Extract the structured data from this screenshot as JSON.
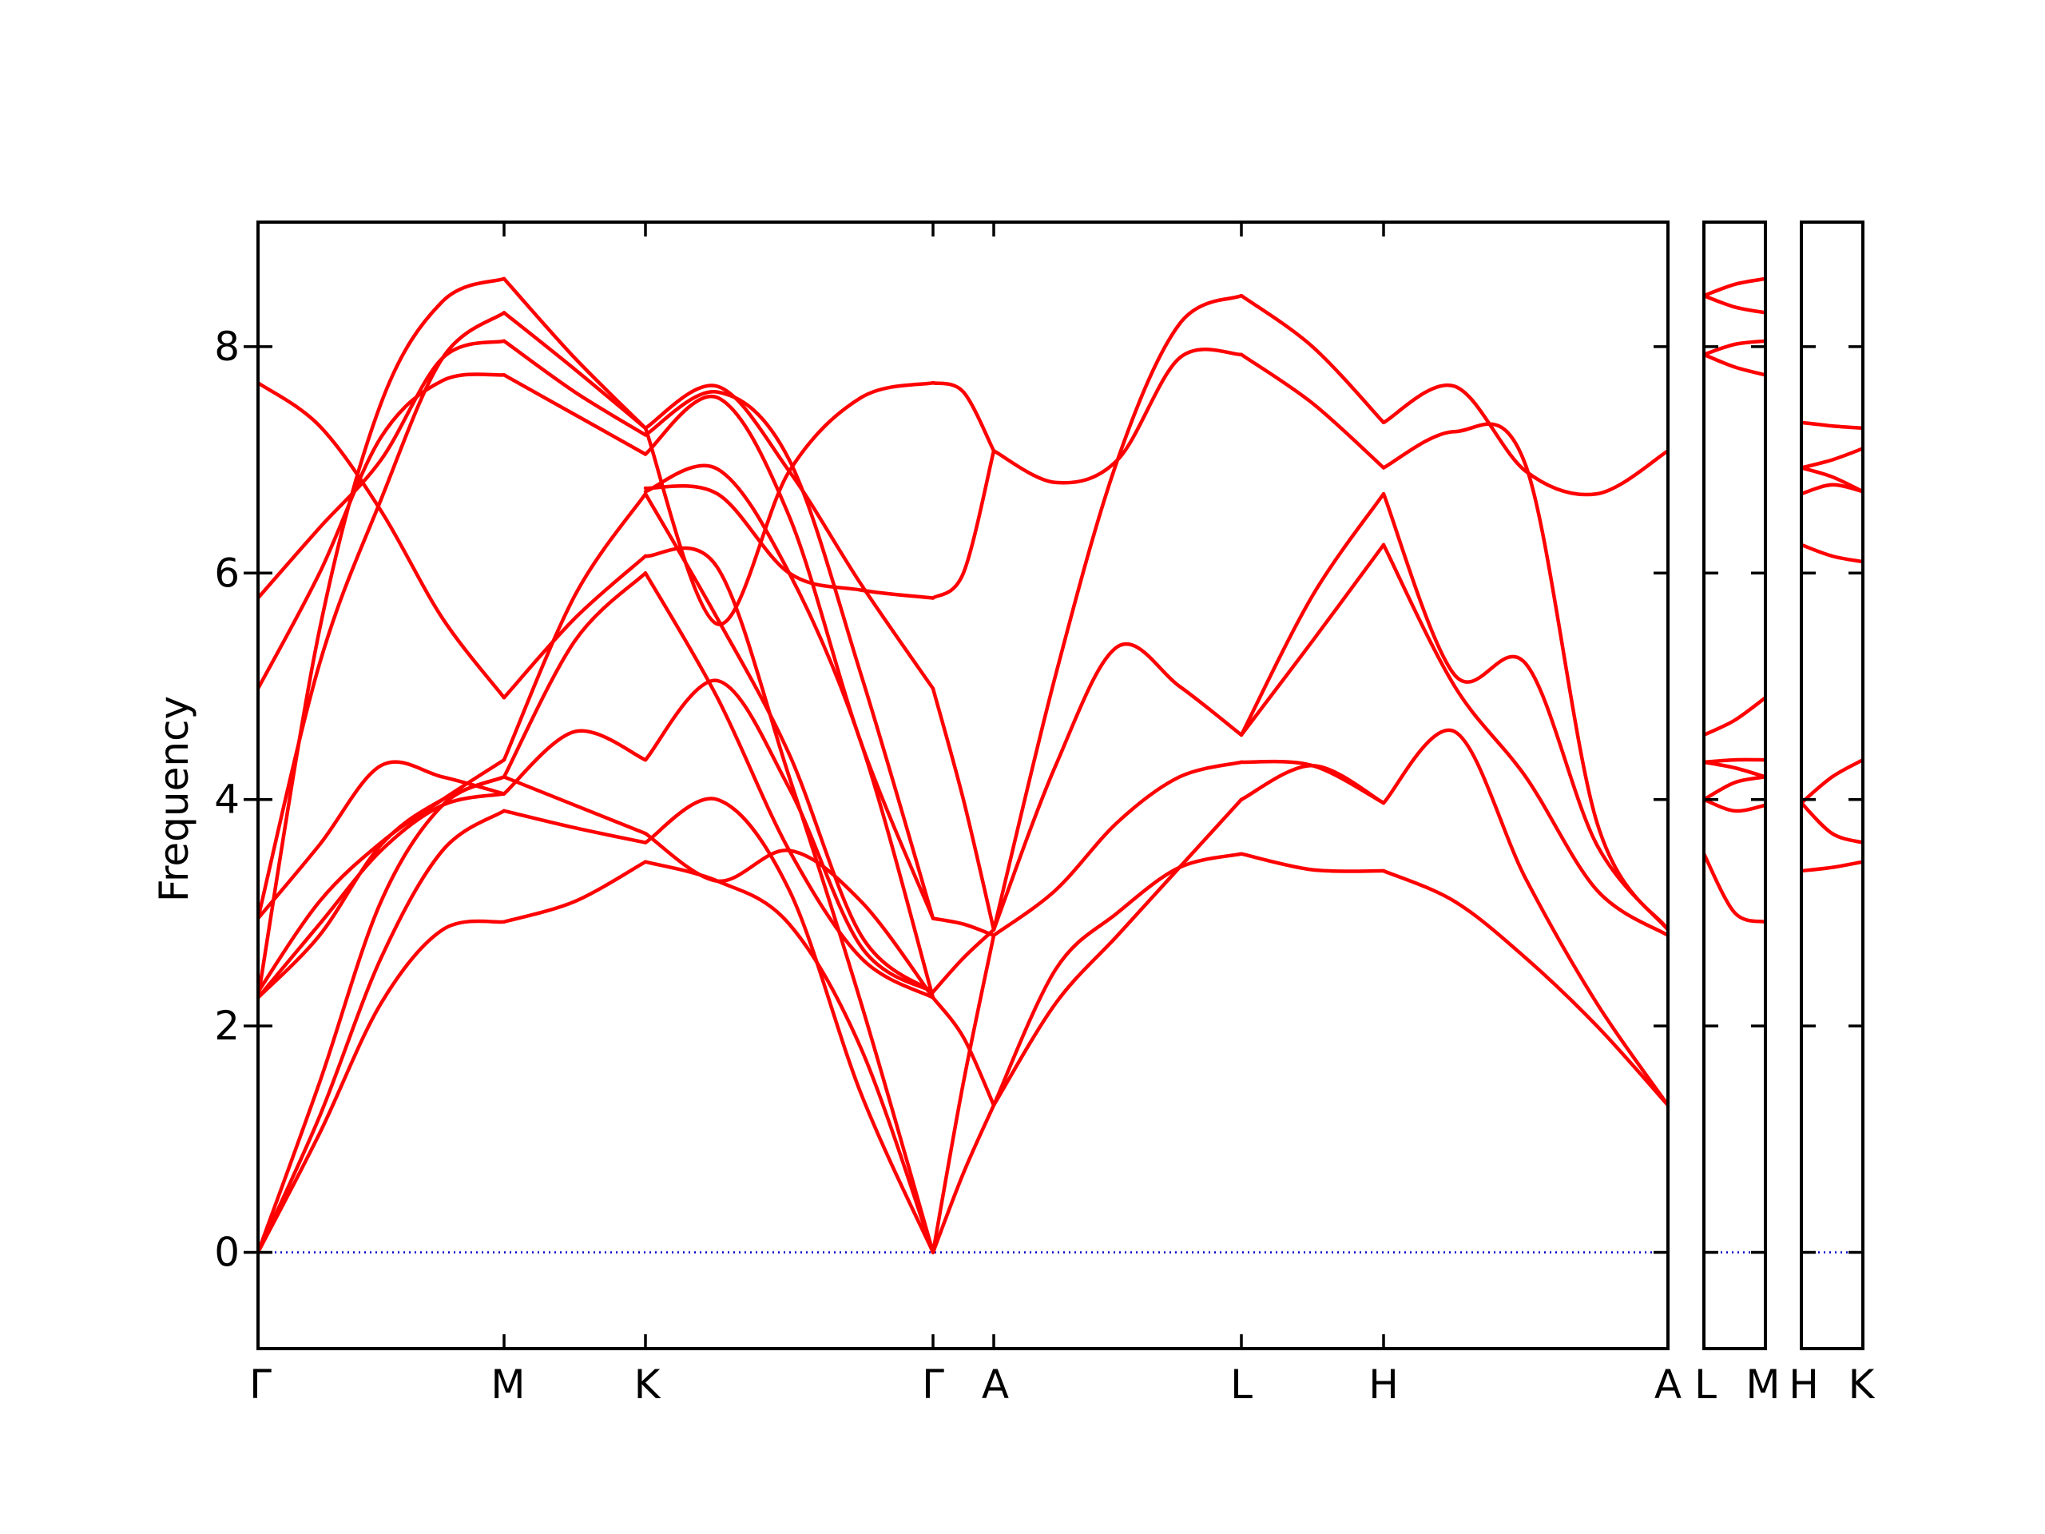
{
  "chart_data": {
    "type": "line",
    "ylabel": "Frequency",
    "ylim": [
      -0.85,
      9.1
    ],
    "yticks": [
      0,
      2,
      4,
      6,
      8
    ],
    "colors": {
      "band": "#ff0000",
      "zero_line": "#0000cc",
      "frame": "#000000"
    },
    "zero_line": {
      "y": 0,
      "style": "dotted"
    },
    "panels": [
      {
        "name": "main",
        "labels": [
          "Γ",
          "M",
          "K",
          "Γ",
          "A",
          "L",
          "H",
          "A"
        ],
        "bands": [
          {
            "segment": "Γ-M",
            "x": [
              0,
              0.25,
              0.5,
              0.75,
              1
            ],
            "lines": [
              [
                0.0,
                1.05,
                2.2,
                2.85,
                2.92
              ],
              [
                0.0,
                1.2,
                2.6,
                3.55,
                3.9
              ],
              [
                0.0,
                1.5,
                3.1,
                3.95,
                4.2
              ],
              [
                2.25,
                2.9,
                3.55,
                3.95,
                4.05
              ],
              [
                2.25,
                2.8,
                3.6,
                4.0,
                4.2
              ],
              [
                2.3,
                3.1,
                3.62,
                4.0,
                4.35
              ],
              [
                2.95,
                3.6,
                4.3,
                4.2,
                4.05
              ],
              [
                4.98,
                6.0,
                7.2,
                7.7,
                7.75
              ],
              [
                5.78,
                6.4,
                7.0,
                7.9,
                8.05
              ],
              [
                2.95,
                5.2,
                6.65,
                7.9,
                8.3
              ],
              [
                7.68,
                7.3,
                6.55,
                5.6,
                4.9
              ],
              [
                2.25,
                5.5,
                7.5,
                8.4,
                8.6
              ]
            ]
          },
          {
            "segment": "M-K",
            "x": [
              0,
              0.5,
              1
            ],
            "lines": [
              [
                2.92,
                3.1,
                3.45
              ],
              [
                3.9,
                3.75,
                3.62
              ],
              [
                4.2,
                3.95,
                3.7
              ],
              [
                4.05,
                4.6,
                4.35
              ],
              [
                4.2,
                5.4,
                6.0
              ],
              [
                4.35,
                5.8,
                6.7
              ],
              [
                7.75,
                7.4,
                7.05
              ],
              [
                8.05,
                7.6,
                7.22
              ],
              [
                8.3,
                7.8,
                7.28
              ],
              [
                4.9,
                5.6,
                6.15
              ],
              [
                8.6,
                7.9,
                7.28
              ]
            ]
          },
          {
            "segment": "K-Γ",
            "x": [
              0,
              0.25,
              0.5,
              0.75,
              1
            ],
            "lines": [
              [
                3.45,
                3.28,
                2.9,
                1.8,
                0.0
              ],
              [
                3.62,
                4.0,
                3.2,
                1.4,
                0.0
              ],
              [
                3.7,
                3.28,
                3.55,
                3.1,
                2.25
              ],
              [
                4.35,
                5.05,
                4.1,
                2.7,
                2.3
              ],
              [
                6.0,
                4.9,
                3.55,
                2.6,
                2.25
              ],
              [
                6.7,
                5.6,
                4.4,
                2.8,
                2.3
              ],
              [
                7.05,
                7.55,
                6.5,
                4.5,
                2.95
              ],
              [
                7.22,
                7.6,
                7.0,
                5.1,
                2.95
              ],
              [
                7.28,
                7.65,
                6.9,
                5.9,
                4.98
              ],
              [
                6.15,
                6.05,
                4.2,
                2.2,
                0.0
              ],
              [
                6.72,
                6.92,
                6.0,
                4.5,
                2.25
              ],
              [
                7.28,
                5.55,
                6.9,
                7.55,
                7.68
              ],
              [
                6.75,
                6.7,
                6.0,
                5.85,
                5.78
              ]
            ]
          },
          {
            "segment": "Γ-A",
            "x": [
              0,
              0.5,
              1
            ],
            "lines": [
              [
                0.0,
                0.7,
                1.3
              ],
              [
                0.0,
                1.5,
                2.8
              ],
              [
                2.25,
                1.9,
                1.3
              ],
              [
                2.3,
                2.6,
                2.85
              ],
              [
                2.95,
                2.9,
                2.8
              ],
              [
                4.98,
                4.0,
                2.85
              ],
              [
                5.78,
                6.0,
                7.08
              ],
              [
                7.68,
                7.6,
                7.08
              ]
            ]
          },
          {
            "segment": "A-L",
            "x": [
              0,
              0.25,
              0.5,
              0.75,
              1
            ],
            "lines": [
              [
                1.3,
                2.5,
                3.0,
                3.4,
                3.52
              ],
              [
                1.3,
                2.2,
                2.8,
                3.4,
                4.0
              ],
              [
                2.8,
                3.2,
                3.8,
                4.2,
                4.33
              ],
              [
                2.85,
                4.3,
                5.35,
                5.0,
                4.57
              ],
              [
                7.08,
                6.8,
                7.0,
                7.9,
                7.93
              ],
              [
                2.85,
                5.1,
                7.0,
                8.2,
                8.45
              ]
            ]
          },
          {
            "segment": "L-H",
            "x": [
              0,
              0.5,
              1
            ],
            "lines": [
              [
                3.52,
                3.38,
                3.37
              ],
              [
                4.0,
                4.3,
                3.97
              ],
              [
                4.33,
                4.3,
                3.97
              ],
              [
                4.57,
                5.4,
                6.25
              ],
              [
                4.57,
                5.8,
                6.7
              ],
              [
                7.93,
                7.5,
                6.93
              ],
              [
                8.45,
                8.0,
                7.33
              ]
            ]
          },
          {
            "segment": "H-A",
            "x": [
              0,
              0.25,
              0.5,
              0.75,
              1
            ],
            "lines": [
              [
                3.37,
                3.1,
                2.6,
                2.0,
                1.3
              ],
              [
                3.97,
                4.6,
                3.3,
                2.2,
                1.3
              ],
              [
                6.25,
                5.0,
                4.2,
                3.2,
                2.8
              ],
              [
                6.7,
                5.1,
                5.2,
                3.6,
                2.85
              ],
              [
                6.93,
                7.25,
                6.95,
                3.8,
                2.85
              ],
              [
                7.33,
                7.65,
                6.9,
                6.7,
                7.08
              ]
            ]
          }
        ]
      },
      {
        "name": "L-M",
        "labels": [
          "L",
          "M"
        ],
        "bands": [
          {
            "segment": "L-M",
            "x": [
              0,
              0.5,
              1
            ],
            "lines": [
              [
                3.52,
                3.0,
                2.92
              ],
              [
                4.0,
                3.9,
                3.95
              ],
              [
                4.0,
                4.15,
                4.2
              ],
              [
                4.33,
                4.28,
                4.2
              ],
              [
                4.33,
                4.35,
                4.35
              ],
              [
                4.57,
                4.7,
                4.9
              ],
              [
                7.93,
                7.82,
                7.75
              ],
              [
                7.93,
                8.02,
                8.05
              ],
              [
                8.45,
                8.35,
                8.3
              ],
              [
                8.45,
                8.55,
                8.6
              ]
            ]
          }
        ]
      },
      {
        "name": "H-K",
        "labels": [
          "H",
          "K"
        ],
        "bands": [
          {
            "segment": "H-K",
            "x": [
              0,
              0.5,
              1
            ],
            "lines": [
              [
                3.37,
                3.4,
                3.45
              ],
              [
                3.97,
                3.7,
                3.62
              ],
              [
                3.97,
                4.2,
                4.35
              ],
              [
                6.25,
                6.15,
                6.1
              ],
              [
                6.7,
                6.78,
                6.72
              ],
              [
                6.93,
                6.85,
                6.72
              ],
              [
                6.93,
                7.0,
                7.1
              ],
              [
                7.33,
                7.3,
                7.28
              ]
            ]
          }
        ]
      }
    ]
  }
}
